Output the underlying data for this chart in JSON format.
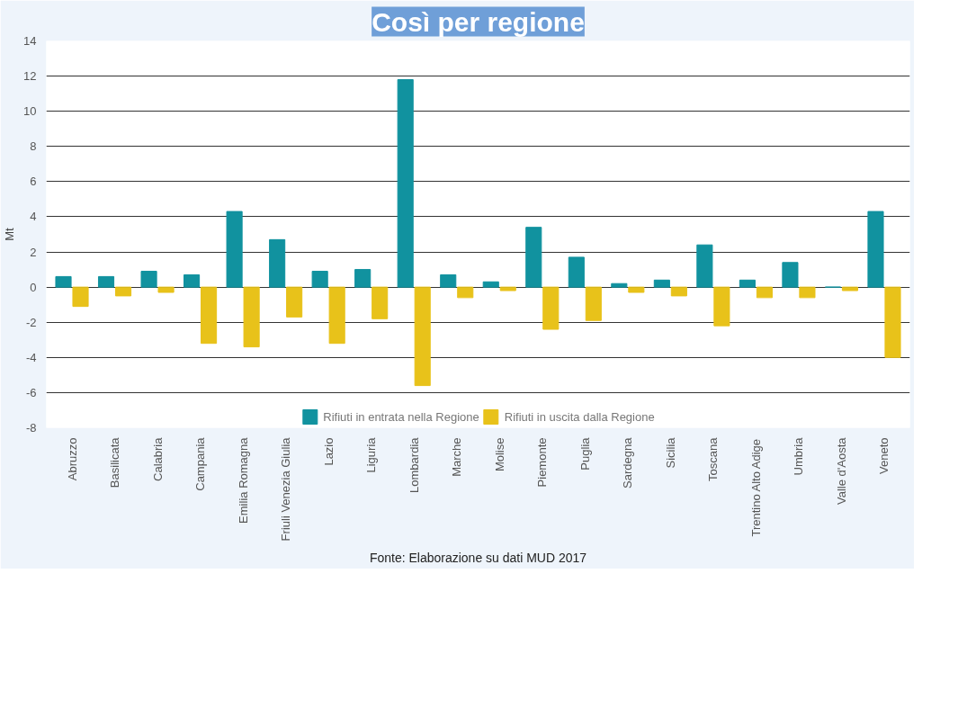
{
  "chart_data": {
    "type": "bar",
    "title": "Così per regione",
    "ylabel": "Mt",
    "categories": [
      "Abruzzo",
      "Basilicata",
      "Calabria",
      "Campania",
      "Emilia Romagna",
      "Friuli Venezia Giulia",
      "Lazio",
      "Liguria",
      "Lombardia",
      "Marche",
      "Molise",
      "Piemonte",
      "Puglia",
      "Sardegna",
      "Sicilia",
      "Toscana",
      "Trentino Alto Adige",
      "Umbria",
      "Valle d'Aosta",
      "Veneto"
    ],
    "series": [
      {
        "name": "Rifiuti in entrata nella Regione",
        "color": "#11929f",
        "values": [
          0.6,
          0.6,
          0.9,
          0.7,
          4.3,
          2.7,
          0.9,
          1.0,
          11.8,
          0.7,
          0.3,
          3.4,
          1.7,
          0.2,
          0.4,
          2.4,
          0.4,
          1.4,
          0,
          4.3
        ]
      },
      {
        "name": "Rifiuti in uscita dalla Regione",
        "color": "#e8c21a",
        "values": [
          -1.1,
          -0.5,
          -0.3,
          -3.2,
          -3.4,
          -1.7,
          -3.2,
          -1.8,
          -5.6,
          -0.6,
          -0.2,
          -2.4,
          -1.9,
          -0.3,
          -0.5,
          -2.2,
          -0.6,
          -0.6,
          -0.2,
          -4.0
        ]
      }
    ],
    "ylim": [
      -8,
      14
    ],
    "yticks": [
      -8,
      -6,
      -4,
      -2,
      0,
      2,
      4,
      6,
      8,
      10,
      12,
      14
    ],
    "grid": "y",
    "legend": "bottom",
    "annotations": [
      "Fonte: Elaborazione su dati MUD 2017"
    ]
  }
}
